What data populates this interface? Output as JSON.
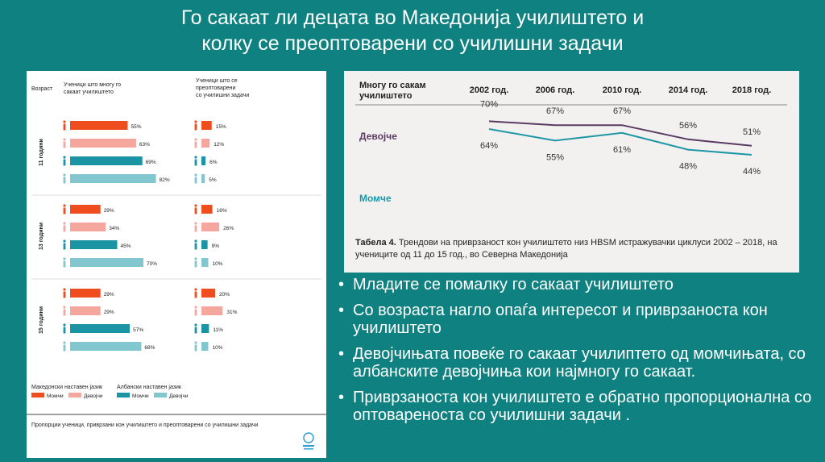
{
  "title_line1": "Го сакаат ли децата во Македонија училиштето и",
  "title_line2": "колку се преоптоварени со училишни задачи",
  "left": {
    "col_age": "Возраст",
    "col_like_1": "Ученици што многу го",
    "col_like_2": "сакаат училиштето",
    "col_pressure_1": "Ученици што се",
    "col_pressure_2": "преоптоварени",
    "col_pressure_3": "со училишни задачи",
    "groups": [
      {
        "age": "11 години",
        "like": [
          55,
          63,
          69,
          82
        ],
        "pressure": [
          15,
          12,
          6,
          5
        ]
      },
      {
        "age": "13 години",
        "like": [
          29,
          34,
          45,
          70
        ],
        "pressure": [
          16,
          26,
          9,
          10
        ]
      },
      {
        "age": "15 години",
        "like": [
          29,
          29,
          57,
          68
        ],
        "pressure": [
          20,
          31,
          11,
          10
        ]
      }
    ],
    "legend_mk_title": "Македонски наставен јазик",
    "legend_al_title": "Албански наставен јазик",
    "legend_boys": "Момчи",
    "legend_girls": "Девојчи",
    "footer": "Пропорции ученици, приврзани кон училиштето и преоптоварени со училишни задачи",
    "colors": {
      "mk_boys": "#ef4d1e",
      "mk_girls": "#f5a69d",
      "al_boys": "#1b95a4",
      "al_girls": "#82c6cf"
    }
  },
  "table": {
    "header": "Многу го сакам училиштето",
    "years": [
      "2002 год.",
      "2006 год.",
      "2010 год.",
      "2014 год.",
      "2018 год."
    ],
    "girls_label": "Девојче",
    "boys_label": "Момче",
    "caption_bold": "Табела 4.",
    "caption_text": " Трендови на приврзаност кон училиштето низ HBSM истражувачки циклуси 2002 – 2018, на учениците од 11 до 15 год., во Северна Македонија"
  },
  "chart_data": {
    "type": "line",
    "x": [
      "2002 год.",
      "2006 год.",
      "2010 год.",
      "2014 год.",
      "2018 год."
    ],
    "series": [
      {
        "name": "Девојче",
        "values": [
          70,
          67,
          67,
          56,
          51
        ],
        "color": "#5b3a63"
      },
      {
        "name": "Момче",
        "values": [
          64,
          55,
          61,
          48,
          44
        ],
        "color": "#1d97a6"
      }
    ]
  },
  "bullets": [
    "Младите се помалку го сакаат училиштето",
    "Со возраста нагло опаѓа интересот и приврзаноста кон училиштето",
    "Девојчињата повеќе го сакаат училиптето од момчињата, со албанските девојчиња кои најмногу го сакаат.",
    "Приврзаноста кон училиштето е обратно пропорционална со оптовареноста со училишни задачи ."
  ]
}
